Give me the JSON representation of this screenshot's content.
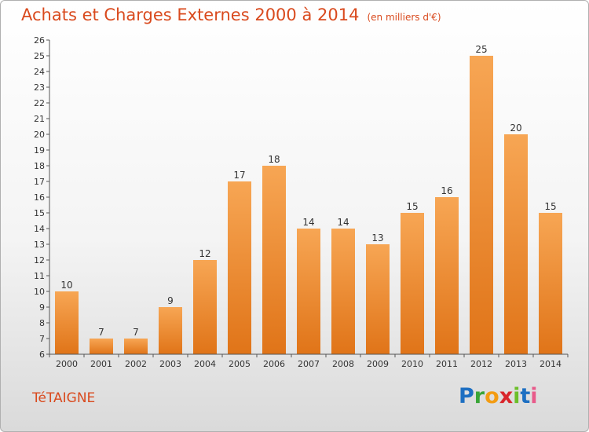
{
  "header": {
    "title": "Achats et Charges Externes 2000 à 2014",
    "unit": "(en milliers d'€)"
  },
  "footer": {
    "commune": "TéTAIGNE",
    "logo_letters": [
      "P",
      "r",
      "o",
      "x",
      "i",
      "t",
      "i"
    ]
  },
  "colors": {
    "bar_top": "#f7a654",
    "bar_bottom": "#e07418",
    "accent": "#d94a1e"
  },
  "chart_data": {
    "type": "bar",
    "title": "Achats et Charges Externes 2000 à 2014",
    "subtitle": "(en milliers d'€)",
    "xlabel": "",
    "ylabel": "",
    "categories": [
      "2000",
      "2001",
      "2002",
      "2003",
      "2004",
      "2005",
      "2006",
      "2007",
      "2008",
      "2009",
      "2010",
      "2011",
      "2012",
      "2013",
      "2014"
    ],
    "values": [
      10,
      7,
      7,
      9,
      12,
      17,
      18,
      14,
      14,
      13,
      15,
      16,
      25,
      20,
      15
    ],
    "ylim": [
      6,
      26
    ],
    "yticks": [
      6,
      7,
      8,
      9,
      10,
      11,
      12,
      13,
      14,
      15,
      16,
      17,
      18,
      19,
      20,
      21,
      22,
      23,
      24,
      25,
      26
    ],
    "grid": false,
    "legend": "none"
  }
}
